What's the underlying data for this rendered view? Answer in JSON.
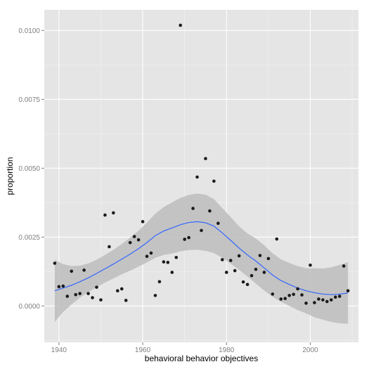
{
  "chart_data": {
    "type": "scatter",
    "title": "",
    "xlabel": "behavioral behavior objectives",
    "ylabel": "proportion",
    "xlim": [
      1936.5,
      2011.5
    ],
    "ylim": [
      -0.00132,
      0.01075
    ],
    "x_ticks": [
      1940,
      1960,
      1980,
      2000
    ],
    "x_tick_labels": [
      "1940",
      "1960",
      "1980",
      "2000"
    ],
    "y_ticks": [
      0.0,
      0.0025,
      0.005,
      0.0075,
      0.01
    ],
    "y_tick_labels": [
      "0.0000",
      "0.0025",
      "0.0050",
      "0.0075",
      "0.0100"
    ],
    "grid": true,
    "colors": {
      "panel": "#e5e5e5",
      "grid": "#ffffff",
      "points": "#1a1a1a",
      "smooth": "#3366ff",
      "band": "#bdbdbd"
    },
    "series": [
      {
        "type": "points",
        "x": [
          1939,
          1940,
          1941,
          1942,
          1943,
          1944,
          1945,
          1946,
          1947,
          1948,
          1949,
          1950,
          1951,
          1952,
          1953,
          1954,
          1955,
          1956,
          1957,
          1958,
          1959,
          1960,
          1961,
          1962,
          1963,
          1964,
          1965,
          1966,
          1967,
          1968,
          1969,
          1970,
          1971,
          1972,
          1973,
          1974,
          1975,
          1976,
          1977,
          1978,
          1979,
          1980,
          1981,
          1982,
          1983,
          1984,
          1985,
          1986,
          1987,
          1988,
          1989,
          1990,
          1991,
          1992,
          1993,
          1994,
          1995,
          1996,
          1997,
          1998,
          1999,
          2000,
          2001,
          2002,
          2003,
          2004,
          2005,
          2006,
          2007,
          2008,
          2009
        ],
        "y": [
          0.00155,
          0.0007,
          0.00072,
          0.00035,
          0.00126,
          0.00041,
          0.00045,
          0.0013,
          0.00045,
          0.0003,
          0.00068,
          0.00022,
          0.0033,
          0.00215,
          0.00338,
          0.00055,
          0.00062,
          0.0002,
          0.0023,
          0.00252,
          0.0024,
          0.00306,
          0.0018,
          0.00192,
          0.00038,
          0.00088,
          0.0016,
          0.00158,
          0.00122,
          0.00176,
          0.01019,
          0.00242,
          0.00248,
          0.00354,
          0.00468,
          0.00274,
          0.00535,
          0.00345,
          0.00453,
          0.003,
          0.00168,
          0.00122,
          0.00165,
          0.00128,
          0.00182,
          0.00087,
          0.00078,
          0.0011,
          0.00133,
          0.00183,
          0.00122,
          0.00172,
          0.00043,
          0.00243,
          0.00025,
          0.00027,
          0.00038,
          0.00042,
          0.00062,
          0.0004,
          0.0001,
          0.00148,
          0.00012,
          0.00025,
          0.00022,
          0.00016,
          0.00022,
          0.00032,
          0.00035,
          0.00145,
          0.00055
        ]
      },
      {
        "type": "smooth",
        "x": [
          1939,
          1941,
          1943,
          1945,
          1947,
          1949,
          1951,
          1953,
          1955,
          1957,
          1959,
          1961,
          1963,
          1965,
          1967,
          1969,
          1971,
          1973,
          1975,
          1977,
          1979,
          1981,
          1983,
          1985,
          1987,
          1989,
          1991,
          1993,
          1995,
          1997,
          1999,
          2001,
          2003,
          2005,
          2007,
          2009
        ],
        "y": [
          0.00055,
          0.00065,
          0.00075,
          0.00088,
          0.00102,
          0.00118,
          0.00135,
          0.00152,
          0.0017,
          0.00188,
          0.00208,
          0.0023,
          0.00255,
          0.00272,
          0.00283,
          0.00295,
          0.00303,
          0.00306,
          0.00302,
          0.0029,
          0.00265,
          0.00238,
          0.0021,
          0.00185,
          0.00163,
          0.00138,
          0.00112,
          0.00092,
          0.00078,
          0.00065,
          0.00055,
          0.00048,
          0.00043,
          0.00041,
          0.00043,
          0.00047
        ],
        "ymin": [
          -0.00058,
          -0.00022,
          5e-05,
          0.0003,
          0.0005,
          0.00068,
          0.00085,
          0.001,
          0.00115,
          0.00128,
          0.00143,
          0.00158,
          0.00175,
          0.00185,
          0.0019,
          0.00198,
          0.00203,
          0.00204,
          0.002,
          0.00192,
          0.00175,
          0.00153,
          0.00131,
          0.00107,
          0.00081,
          0.00056,
          0.00033,
          0.00015,
          0.0,
          -0.00015,
          -0.00027,
          -0.00041,
          -0.0005,
          -0.00058,
          -0.00063,
          -0.00065
        ],
        "ymax": [
          0.00168,
          0.00152,
          0.00145,
          0.00146,
          0.00154,
          0.00168,
          0.00185,
          0.00204,
          0.00225,
          0.00248,
          0.00273,
          0.00302,
          0.00335,
          0.00359,
          0.00376,
          0.00392,
          0.00403,
          0.00408,
          0.00404,
          0.00388,
          0.00355,
          0.00323,
          0.00289,
          0.00263,
          0.00245,
          0.0022,
          0.00191,
          0.00169,
          0.00156,
          0.00145,
          0.00137,
          0.00137,
          0.00136,
          0.0014,
          0.00149,
          0.00159
        ]
      }
    ]
  }
}
